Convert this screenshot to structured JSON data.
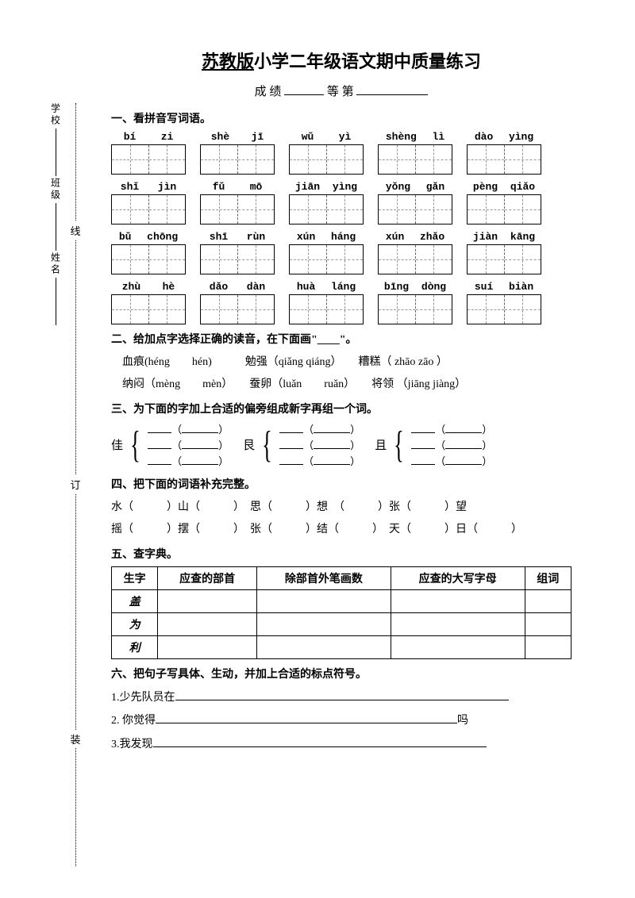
{
  "title_underlined": "苏教版",
  "title_rest": "小学二年级语文期中质量练习",
  "score_prefix": "成 绩",
  "score_mid": "等 第",
  "sections": {
    "s1": "一、看拼音写词语。",
    "s2": "二、给加点字选择正确的读音，在下面画\"____\"。",
    "s3": "三、为下面的字加上合适的偏旁组成新字再组一个词。",
    "s4": "四、把下面的词语补充完整。",
    "s5": "五、查字典。",
    "s6": "六、把句子写具体、生动，并加上合适的标点符号。"
  },
  "pinyin_rows": [
    [
      [
        "bí",
        "zi"
      ],
      [
        "shè",
        "jī"
      ],
      [
        "wǔ",
        "yì"
      ],
      [
        "shèng",
        "lì"
      ],
      [
        "dào",
        "yìng"
      ]
    ],
    [
      [
        "shǐ",
        "jìn"
      ],
      [
        "fǔ",
        "mō"
      ],
      [
        "jiān",
        "yìng"
      ],
      [
        "yǒng",
        "gǎn"
      ],
      [
        "pèng",
        "qiǎo"
      ]
    ],
    [
      [
        "bǔ",
        "chōng"
      ],
      [
        "shī",
        "rùn"
      ],
      [
        "xún",
        "háng"
      ],
      [
        "xún",
        "zhǎo"
      ],
      [
        "jiàn",
        "kāng"
      ]
    ],
    [
      [
        "zhù",
        "hè"
      ],
      [
        "dǎo",
        "dàn"
      ],
      [
        "huà",
        "láng"
      ],
      [
        "bīng",
        "dòng"
      ],
      [
        "suí",
        "biàn"
      ]
    ]
  ],
  "q2_lines": [
    "血痕(héng　　hén)　　　勉强（qiǎng qiáng）　　糟糕（ zhāo zāo ）",
    "纳闷（mèng　　mèn）　　蚕卵（luǎn　　ruǎn）　　将领 （jiāng jiàng）"
  ],
  "q3": {
    "groups": [
      {
        "char": "佳"
      },
      {
        "char": "艮"
      },
      {
        "char": "且"
      }
    ]
  },
  "q4_lines": [
    "水（　　　）山（　　　）　思（　　　）想　（　　　）张（　　　）望",
    "摇（　　　）摆（　　　）　张（　　　）结（　　　）　天（　　　）日（　　　）"
  ],
  "q5": {
    "headers": [
      "生字",
      "应查的部首",
      "除部首外笔画数",
      "应查的大写字母",
      "组词"
    ],
    "rows": [
      "盖",
      "为",
      "利"
    ]
  },
  "q6": [
    {
      "n": "1.",
      "text": "少先队员在",
      "tail": ""
    },
    {
      "n": "2.",
      "text": " 你觉得",
      "tail": "吗"
    },
    {
      "n": "3.",
      "text": "我发现",
      "tail": ""
    }
  ],
  "binding": {
    "school": "学校",
    "class": "班级",
    "name": "姓名",
    "zhuang": "装",
    "ding": "订",
    "xian": "线"
  }
}
